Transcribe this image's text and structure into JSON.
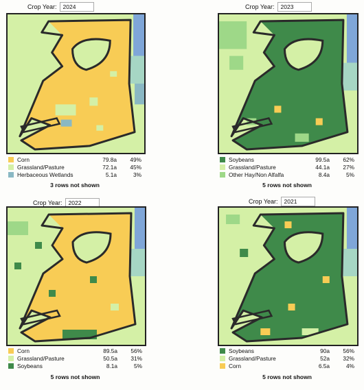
{
  "crop_year_label": "Crop Year:",
  "panels": [
    {
      "year": "2024",
      "legend": [
        {
          "name": "Corn",
          "acres": "79.8a",
          "pct": "49%",
          "color": "#f8cc55"
        },
        {
          "name": "Grassland/Pasture",
          "acres": "72.1a",
          "pct": "45%",
          "color": "#d4f0a6"
        },
        {
          "name": "Herbaceous Wetlands",
          "acres": "5.1a",
          "pct": "3%",
          "color": "#8ab8c4"
        }
      ],
      "more_rows": "3 rows not shown"
    },
    {
      "year": "2023",
      "legend": [
        {
          "name": "Soybeans",
          "acres": "99.5a",
          "pct": "62%",
          "color": "#3f8a4a"
        },
        {
          "name": "Grassland/Pasture",
          "acres": "44.1a",
          "pct": "27%",
          "color": "#d4f0a6"
        },
        {
          "name": "Other Hay/Non Alfalfa",
          "acres": "8.4a",
          "pct": "5%",
          "color": "#9ed888"
        }
      ],
      "more_rows": "5 rows not shown"
    },
    {
      "year": "2022",
      "legend": [
        {
          "name": "Corn",
          "acres": "89.5a",
          "pct": "56%",
          "color": "#f8cc55"
        },
        {
          "name": "Grassland/Pasture",
          "acres": "50.5a",
          "pct": "31%",
          "color": "#d4f0a6"
        },
        {
          "name": "Soybeans",
          "acres": "8.1a",
          "pct": "5%",
          "color": "#3f8a4a"
        }
      ],
      "more_rows": "5 rows not shown"
    },
    {
      "year": "2021",
      "legend": [
        {
          "name": "Soybeans",
          "acres": "90a",
          "pct": "56%",
          "color": "#3f8a4a"
        },
        {
          "name": "Grassland/Pasture",
          "acres": "52a",
          "pct": "32%",
          "color": "#d4f0a6"
        },
        {
          "name": "Corn",
          "acres": "6.5a",
          "pct": "4%",
          "color": "#f8cc55"
        }
      ],
      "more_rows": "5 rows not shown"
    }
  ],
  "colors": {
    "grassland": "#d4f0a6",
    "corn": "#f8cc55",
    "soybeans": "#3f8a4a",
    "hay": "#9ed888",
    "water": "#7fa6d8",
    "wetlands": "#8ab8c4",
    "boundary": "#2a2a2a"
  }
}
